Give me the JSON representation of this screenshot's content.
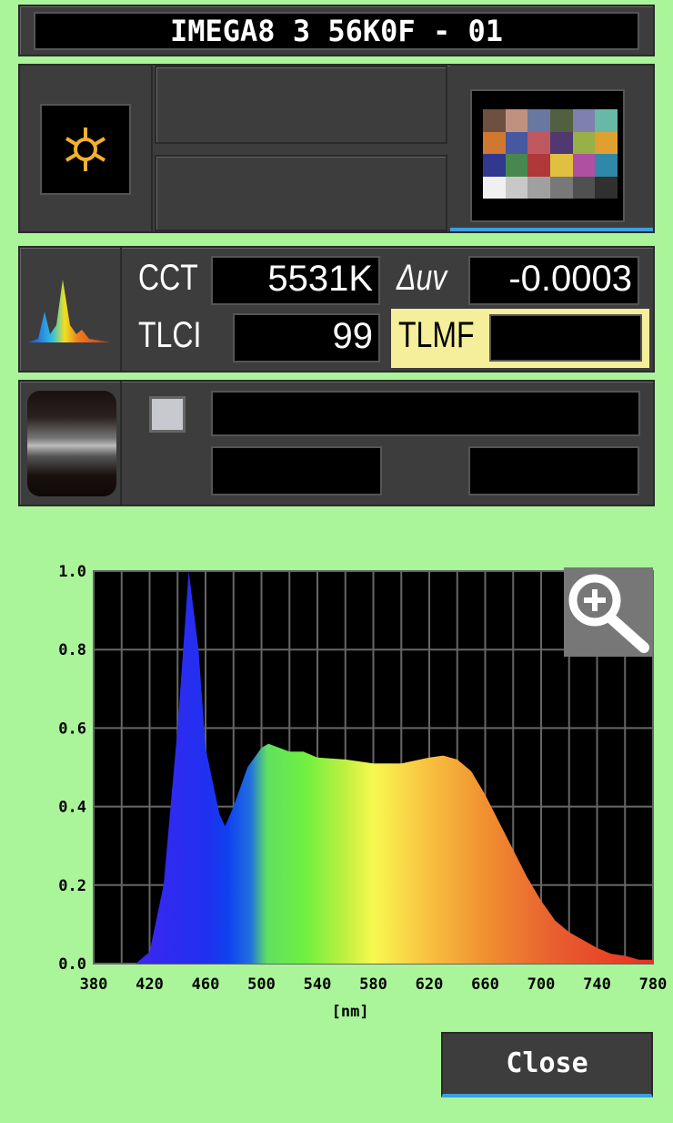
{
  "title": "IMEGA8 3 56K0F - 01",
  "icons": {
    "light_source": "sun-icon",
    "color_chart": "color-checker-icon",
    "spectrum": "spectrum-icon",
    "filter": "filter-roll-icon",
    "zoom": "zoom-in-icon"
  },
  "metrics": {
    "cct_label": "CCT",
    "cct_value": "5531K",
    "duv_label": "Δuv",
    "duv_value": "-0.0003",
    "tlci_label": "TLCI",
    "tlci_value": "99",
    "tlmf_label": "TLMF",
    "tlmf_value": ""
  },
  "colors": {
    "background": "#aaf59a",
    "tlmf_highlight": "#f5ee9a",
    "sun": "#f0b030"
  },
  "color_checker": [
    "#6e5040",
    "#c09080",
    "#6878a0",
    "#506040",
    "#8080b0",
    "#68b8a8",
    "#d07830",
    "#4858a0",
    "#c05860",
    "#503870",
    "#98b048",
    "#e0a030",
    "#303890",
    "#488850",
    "#b03838",
    "#e0c040",
    "#b050a0",
    "#3088a8",
    "#f0f0f0",
    "#c8c8c8",
    "#a0a0a0",
    "#787878",
    "#505050",
    "#303030"
  ],
  "close_label": "Close",
  "chart_data": {
    "type": "area",
    "xlabel": "[nm]",
    "ylabel": "",
    "xlim": [
      380,
      780
    ],
    "ylim": [
      0,
      1.0
    ],
    "grid": true,
    "xticks": [
      "380",
      "420",
      "460",
      "500",
      "540",
      "580",
      "620",
      "660",
      "700",
      "740",
      "780"
    ],
    "yticks": [
      "0.0",
      "0.2",
      "0.4",
      "0.6",
      "0.8",
      "1.0"
    ],
    "x": [
      380,
      410,
      420,
      430,
      440,
      448,
      455,
      460,
      470,
      474,
      480,
      490,
      500,
      505,
      520,
      530,
      540,
      560,
      580,
      600,
      620,
      630,
      640,
      650,
      660,
      670,
      680,
      690,
      700,
      710,
      720,
      730,
      740,
      750,
      760,
      770,
      780
    ],
    "y": [
      0,
      0,
      0.03,
      0.2,
      0.6,
      1.0,
      0.8,
      0.55,
      0.38,
      0.35,
      0.4,
      0.5,
      0.55,
      0.56,
      0.54,
      0.54,
      0.525,
      0.52,
      0.51,
      0.51,
      0.525,
      0.53,
      0.52,
      0.49,
      0.43,
      0.36,
      0.29,
      0.22,
      0.16,
      0.11,
      0.08,
      0.06,
      0.04,
      0.025,
      0.02,
      0.01,
      0.01
    ]
  }
}
